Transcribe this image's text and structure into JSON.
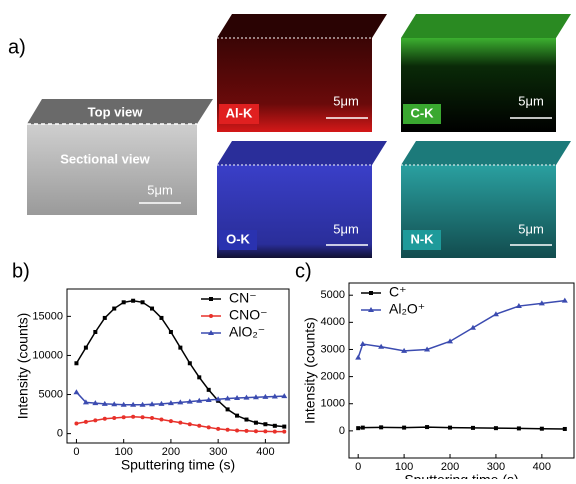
{
  "panel_a": {
    "label": "a)",
    "sem": {
      "top": "Top view",
      "section": "Sectional view",
      "scale": "5μm"
    },
    "maps": [
      {
        "label": "Al-K",
        "scale": "5μm"
      },
      {
        "label": "C-K",
        "scale": "5μm"
      },
      {
        "label": "O-K",
        "scale": "5μm"
      },
      {
        "label": "N-K",
        "scale": "5μm"
      }
    ]
  },
  "chart_data": [
    {
      "type": "line",
      "panel": "b)",
      "x_label": "Sputtering time (s)",
      "y_label": "Intensity (counts)",
      "xlim": [
        -20,
        450
      ],
      "xticks": [
        0,
        100,
        200,
        300,
        400
      ],
      "ylim": [
        -1200,
        18500
      ],
      "yticks": [
        0,
        5000,
        10000,
        15000
      ],
      "legend": "upper right",
      "x": [
        0,
        20,
        40,
        60,
        80,
        100,
        120,
        140,
        160,
        180,
        200,
        220,
        240,
        260,
        280,
        300,
        320,
        340,
        360,
        380,
        400,
        420,
        440
      ],
      "series": [
        {
          "name": "CN⁻",
          "color": "#000000",
          "marker": "square",
          "values": [
            9000,
            11000,
            13000,
            14800,
            16000,
            16800,
            17000,
            16800,
            16000,
            14800,
            13000,
            11000,
            9000,
            7200,
            5600,
            4200,
            3100,
            2300,
            1800,
            1400,
            1200,
            1000,
            900
          ]
        },
        {
          "name": "CNO⁻",
          "color": "#e8312a",
          "marker": "circle",
          "values": [
            1300,
            1500,
            1700,
            1900,
            2000,
            2100,
            2150,
            2100,
            2000,
            1800,
            1600,
            1400,
            1200,
            1000,
            800,
            600,
            500,
            400,
            350,
            300,
            280,
            250,
            250
          ]
        },
        {
          "name": "AlO₂⁻",
          "color": "#3b4bb0",
          "marker": "triangle",
          "values": [
            5300,
            4000,
            3900,
            3800,
            3750,
            3700,
            3700,
            3700,
            3750,
            3800,
            3900,
            4000,
            4100,
            4200,
            4300,
            4400,
            4500,
            4550,
            4600,
            4650,
            4700,
            4750,
            4800
          ]
        }
      ]
    },
    {
      "type": "line",
      "panel": "c)",
      "x_label": "Sputtering time (s)",
      "y_label": "Intensity (counts)",
      "xlim": [
        -20,
        470
      ],
      "xticks": [
        0,
        100,
        200,
        300,
        400
      ],
      "ylim": [
        -1000,
        5450
      ],
      "yticks": [
        0,
        1000,
        2000,
        3000,
        4000,
        5000
      ],
      "legend": "upper left",
      "x": [
        0,
        10,
        50,
        100,
        150,
        200,
        250,
        300,
        350,
        400,
        450
      ],
      "series": [
        {
          "name": "C⁺",
          "color": "#000000",
          "marker": "square",
          "values": [
            100,
            120,
            130,
            120,
            140,
            120,
            110,
            100,
            90,
            80,
            70
          ]
        },
        {
          "name": "Al₂O⁺",
          "color": "#3b4bb0",
          "marker": "triangle",
          "values": [
            2700,
            3200,
            3100,
            2950,
            3000,
            3300,
            3800,
            4300,
            4600,
            4700,
            4800
          ]
        }
      ]
    }
  ]
}
